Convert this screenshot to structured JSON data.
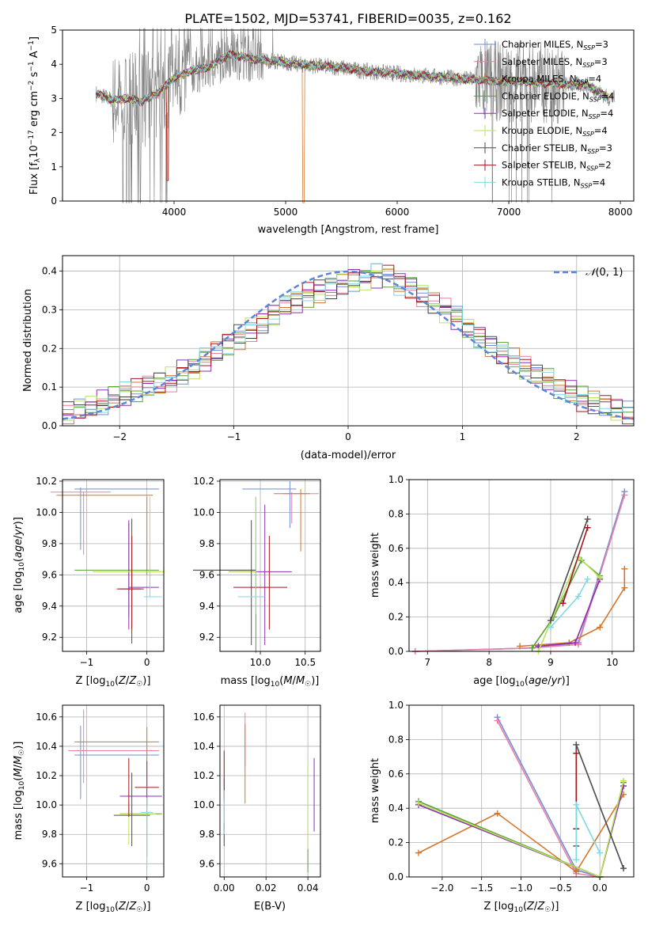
{
  "figure": {
    "title": "PLATE=1502, MJD=53741, FIBERID=0035, z=0.162"
  },
  "colors": {
    "Chabrier MILES": "#6f8fd9",
    "Salpeter MILES": "#e87fa6",
    "Kroupa MILES": "#d4762a",
    "Chabrier ELODIE": "#5a9e3a",
    "Salpeter ELODIE": "#8a2fb0",
    "Kroupa ELODIE": "#b9e35a",
    "Chabrier STELIB": "#4a4a4a",
    "Salpeter STELIB": "#a5161c",
    "Kroupa STELIB": "#7fd9e0",
    "observed": "#808080",
    "gaussian": "#5b87d6"
  },
  "chart_data": [
    {
      "id": "spectrum",
      "type": "line",
      "title": "PLATE=1502, MJD=53741, FIBERID=0035, z=0.162",
      "xlabel": "wavelength [Angstrom, rest frame]",
      "ylabel": "Flux [f_λ 10^-17 erg cm^-2 s^-1 A^-1]",
      "xlim": [
        3000,
        8120
      ],
      "ylim": [
        0,
        5
      ],
      "xticks": [
        4000,
        5000,
        6000,
        7000,
        8000
      ],
      "yticks": [
        0,
        1,
        2,
        3,
        4,
        5
      ],
      "grid": false,
      "legend_position": "right",
      "series": [
        {
          "name": "Chabrier MILES, N_SSP=3"
        },
        {
          "name": "Salpeter MILES, N_SSP=3"
        },
        {
          "name": "Kroupa MILES, N_SSP=4"
        },
        {
          "name": "Chabrier ELODIE, N_SSP=4"
        },
        {
          "name": "Salpeter ELODIE, N_SSP=4"
        },
        {
          "name": "Kroupa ELODIE, N_SSP=4"
        },
        {
          "name": "Chabrier STELIB, N_SSP=3"
        },
        {
          "name": "Salpeter STELIB, N_SSP=2"
        },
        {
          "name": "Kroupa STELIB, N_SSP=4"
        }
      ],
      "continuum": {
        "x": [
          3300,
          3450,
          3600,
          3700,
          3850,
          4000,
          4150,
          4300,
          4500,
          4700,
          4900,
          5100,
          5300,
          5500,
          5700,
          5900,
          6100,
          6300,
          6500,
          6700,
          6900,
          7100,
          7300,
          7500,
          7700,
          7900
        ],
        "y": [
          3.15,
          2.95,
          3.0,
          2.9,
          3.15,
          3.6,
          3.8,
          3.9,
          4.3,
          4.15,
          4.1,
          4.0,
          3.95,
          3.9,
          3.8,
          3.75,
          3.7,
          3.65,
          3.6,
          3.55,
          3.5,
          3.5,
          3.45,
          3.4,
          3.4,
          3.0
        ]
      }
    },
    {
      "id": "residuals",
      "type": "bar",
      "xlabel": "(data-model)/error",
      "ylabel": "Normed distribution",
      "xlim": [
        -2.5,
        2.5
      ],
      "ylim": [
        0,
        0.44
      ],
      "xticks": [
        -2,
        -1,
        0,
        1,
        2
      ],
      "yticks": [
        0.0,
        0.1,
        0.2,
        0.3,
        0.4
      ],
      "grid": true,
      "legend": "N(0,1)",
      "legend_position": "top-right",
      "bin_width": 0.1,
      "series": [
        {
          "values": [
            0.03,
            0.04,
            0.05,
            0.06,
            0.07,
            0.08,
            0.09,
            0.1,
            0.11,
            0.12,
            0.14,
            0.15,
            0.17,
            0.19,
            0.21,
            0.23,
            0.25,
            0.27,
            0.29,
            0.31,
            0.32,
            0.34,
            0.35,
            0.36,
            0.37,
            0.38,
            0.38,
            0.39,
            0.39,
            0.37,
            0.36,
            0.34,
            0.32,
            0.3,
            0.28,
            0.25,
            0.23,
            0.21,
            0.19,
            0.17,
            0.15,
            0.13,
            0.12,
            0.1,
            0.09,
            0.07,
            0.06,
            0.05,
            0.04,
            0.03
          ]
        }
      ]
    },
    {
      "id": "age-vs-z",
      "type": "scatter",
      "xlabel": "Z [log10(Z/Z☉)]",
      "ylabel": "age [log10(age/yr)]",
      "xlim": [
        -1.4,
        0.28
      ],
      "ylim": [
        9.11,
        10.21
      ],
      "xticks": [
        -1,
        0
      ],
      "yticks": [
        9.2,
        9.4,
        9.6,
        9.8,
        10.0,
        10.2
      ],
      "grid": true
    },
    {
      "id": "age-vs-mass",
      "type": "scatter",
      "xlabel": "mass [log10(M/M☉)]",
      "xlim": [
        9.55,
        10.67
      ],
      "ylim": [
        9.11,
        10.21
      ],
      "xticks": [
        10.0,
        10.5
      ],
      "yticks": [
        9.2,
        9.4,
        9.6,
        9.8,
        10.0,
        10.2
      ],
      "grid": true
    },
    {
      "id": "weight-vs-age",
      "type": "line",
      "xlabel": "age [log10(age/yr)]",
      "ylabel": "mass weight",
      "xlim": [
        6.7,
        10.35
      ],
      "ylim": [
        0,
        1
      ],
      "xticks": [
        7,
        8,
        9,
        10
      ],
      "yticks": [
        0.0,
        0.2,
        0.4,
        0.6,
        0.8,
        1.0
      ],
      "grid": true,
      "series": [
        {
          "x": [
            6.8,
            8.7,
            9.45,
            10.2
          ],
          "y": [
            0.0,
            0.02,
            0.05,
            0.93
          ]
        },
        {
          "x": [
            6.8,
            8.7,
            9.45,
            10.2
          ],
          "y": [
            0.0,
            0.02,
            0.04,
            0.91
          ]
        },
        {
          "x": [
            8.5,
            9.3,
            9.8,
            10.2,
            10.2
          ],
          "y": [
            0.03,
            0.05,
            0.14,
            0.37,
            0.48
          ]
        },
        {
          "x": [
            8.7,
            9.05,
            9.5,
            9.8
          ],
          "y": [
            0.02,
            0.2,
            0.53,
            0.44
          ]
        },
        {
          "x": [
            8.8,
            9.4,
            9.8
          ],
          "y": [
            0.03,
            0.05,
            0.42
          ]
        },
        {
          "x": [
            8.8,
            9.45,
            9.8
          ],
          "y": [
            0.0,
            0.55,
            0.43
          ]
        },
        {
          "x": [
            9.0,
            9.6
          ],
          "y": [
            0.18,
            0.77
          ]
        },
        {
          "x": [
            9.2,
            9.6
          ],
          "y": [
            0.28,
            0.72
          ]
        },
        {
          "x": [
            9.0,
            9.45,
            9.6
          ],
          "y": [
            0.14,
            0.32,
            0.42
          ]
        }
      ]
    },
    {
      "id": "mass-vs-z",
      "type": "scatter",
      "xlabel": "Z [log10(Z/Z☉)]",
      "ylabel": "mass [log10(M/M☉)]",
      "xlim": [
        -1.4,
        0.28
      ],
      "ylim": [
        9.51,
        10.68
      ],
      "xticks": [
        -1,
        0
      ],
      "yticks": [
        9.6,
        9.8,
        10.0,
        10.2,
        10.4,
        10.6
      ],
      "grid": true
    },
    {
      "id": "mass-vs-ebv",
      "type": "scatter",
      "xlabel": "E(B-V)",
      "xlim": [
        -0.002,
        0.046
      ],
      "ylim": [
        9.51,
        10.68
      ],
      "xticks": [
        0.0,
        0.02,
        0.04
      ],
      "yticks": [
        9.6,
        9.8,
        10.0,
        10.2,
        10.4,
        10.6
      ],
      "grid": true
    },
    {
      "id": "weight-vs-z",
      "type": "line",
      "xlabel": "Z [log10(Z/Z☉)]",
      "ylabel": "mass weight",
      "xlim": [
        -2.42,
        0.43
      ],
      "ylim": [
        0,
        1
      ],
      "xticks": [
        -2.0,
        -1.5,
        -1.0,
        -0.5,
        0.0
      ],
      "yticks": [
        0.0,
        0.2,
        0.4,
        0.6,
        0.8,
        1.0
      ],
      "grid": true,
      "series": [
        {
          "x": [
            -1.3,
            -0.3,
            0.0
          ],
          "y": [
            0.93,
            0.04,
            0.0
          ]
        },
        {
          "x": [
            -1.3,
            -0.3,
            0.0
          ],
          "y": [
            0.91,
            0.02,
            0.0
          ]
        },
        {
          "x": [
            -2.3,
            -1.3,
            -0.3,
            0.3
          ],
          "y": [
            0.14,
            0.37,
            0.03,
            0.48
          ]
        },
        {
          "x": [
            -2.3,
            0.0,
            0.3
          ],
          "y": [
            0.44,
            0.0,
            0.55
          ]
        },
        {
          "x": [
            -2.3,
            0.0,
            0.3
          ],
          "y": [
            0.42,
            0.0,
            0.53
          ]
        },
        {
          "x": [
            -2.3,
            0.0,
            0.3
          ],
          "y": [
            0.43,
            0.0,
            0.56
          ]
        },
        {
          "x": [
            -0.3,
            -0.3,
            0.3
          ],
          "y": [
            0.18,
            0.77,
            0.05
          ]
        },
        {
          "x": [
            -0.3,
            -0.3
          ],
          "y": [
            0.28,
            0.72
          ]
        },
        {
          "x": [
            -0.3,
            -0.3,
            0.0
          ],
          "y": [
            0.1,
            0.42,
            0.14
          ]
        }
      ]
    }
  ]
}
